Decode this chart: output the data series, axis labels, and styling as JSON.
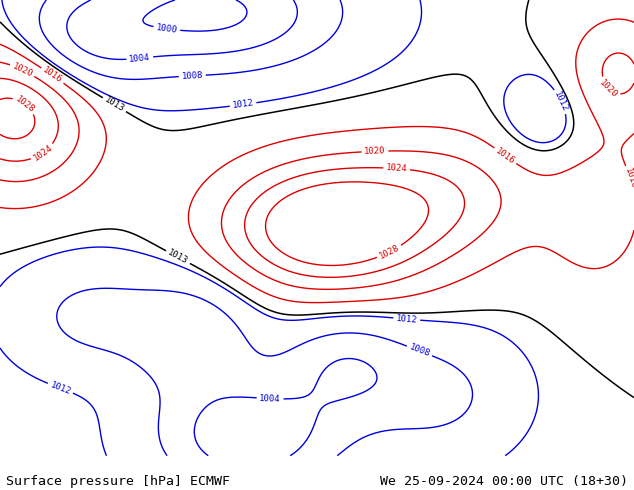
{
  "title_left": "Surface pressure [hPa] ECMWF",
  "title_right": "We 25-09-2024 00:00 UTC (18+30)",
  "title_fontsize": 9.5,
  "title_color": "#000000",
  "background_color": "#ffffff",
  "fig_width": 6.34,
  "fig_height": 4.9,
  "dpi": 100,
  "ocean_color": "#b8d4e8",
  "land_color_low": "#c8d4a8",
  "land_color_mid": "#d4c898",
  "land_color_high": "#c8a870",
  "tibet_color": "#c87840",
  "isobar_blue_color": "#0000dd",
  "isobar_red_color": "#dd0000",
  "isobar_black_color": "#000000",
  "label_fontsize": 6.5,
  "lon_min": 25,
  "lon_max": 145,
  "lat_min": -5,
  "lat_max": 70
}
